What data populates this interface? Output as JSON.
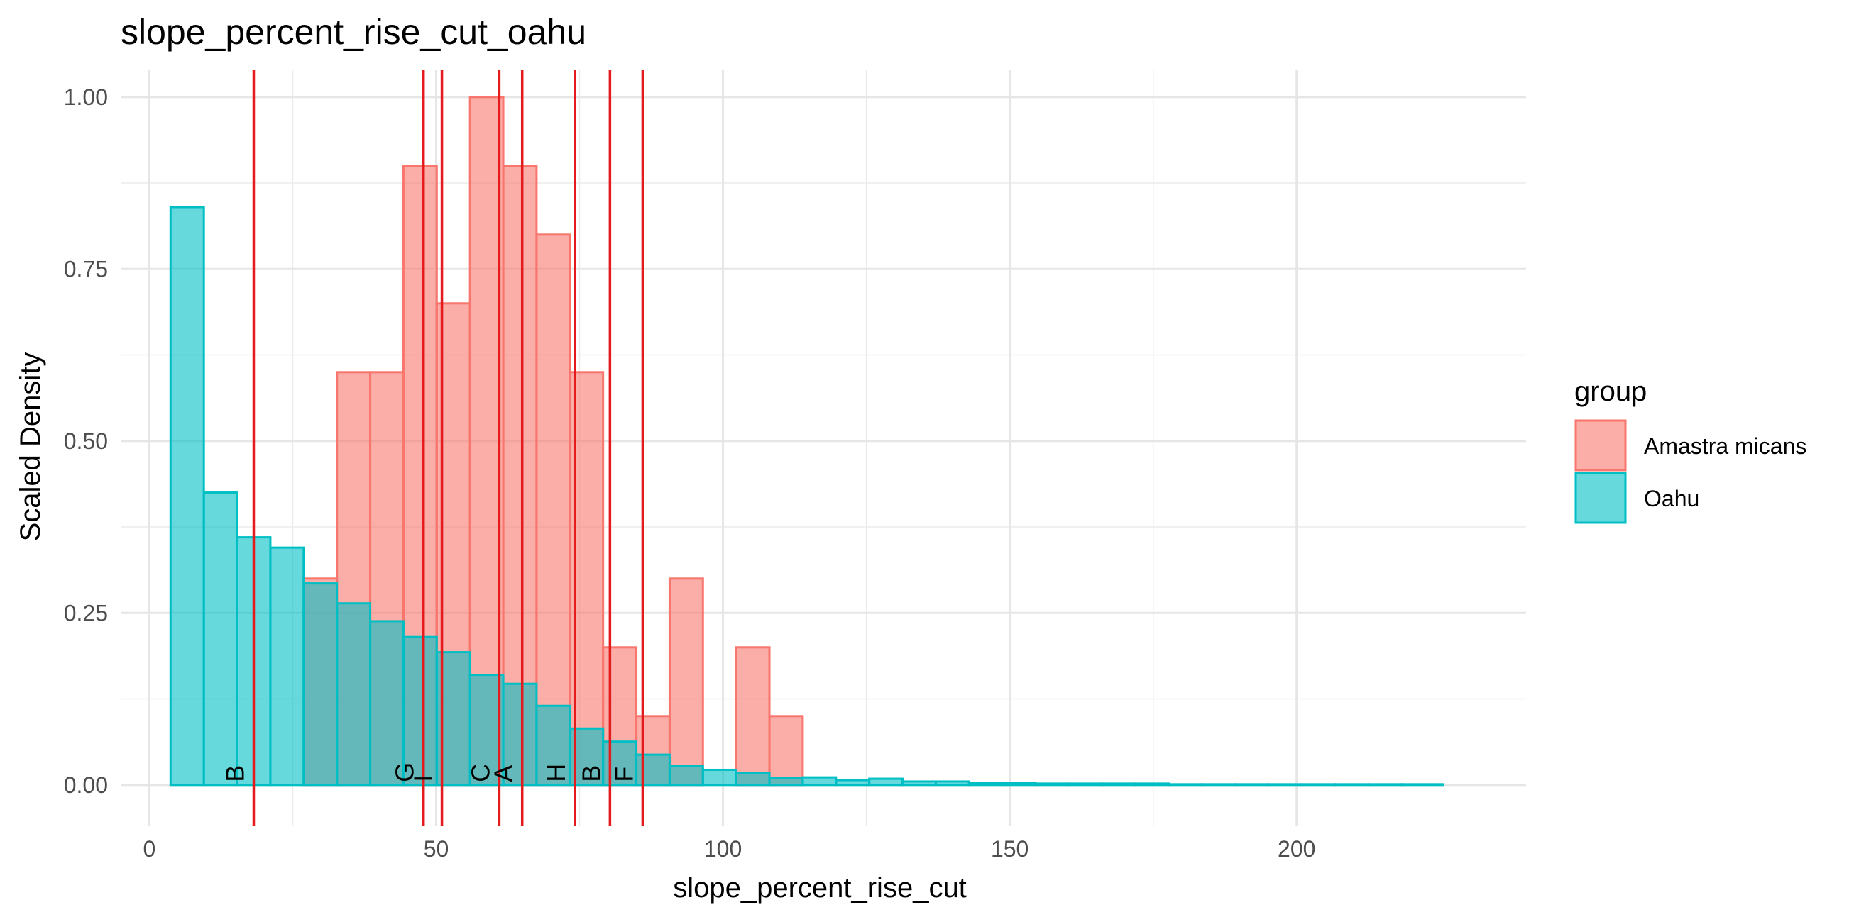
{
  "chart_data": {
    "type": "bar",
    "title": "slope_percent_rise_cut_oahu",
    "xlabel": "slope_percent_rise_cut",
    "ylabel": "Scaled Density",
    "xlim": [
      -5,
      240
    ],
    "ylim": [
      -0.06,
      1.04
    ],
    "x_ticks": [
      0,
      50,
      100,
      150,
      200
    ],
    "y_ticks": [
      0.0,
      0.25,
      0.5,
      0.75,
      1.0
    ],
    "x_tick_labels": [
      "0",
      "50",
      "100",
      "150",
      "200"
    ],
    "y_tick_labels": [
      "0.00",
      "0.25",
      "0.50",
      "0.75",
      "1.00"
    ],
    "grid": true,
    "legend": {
      "title": "group",
      "position": "right",
      "items": [
        {
          "label": "Amastra micans",
          "fill": "#F8766D",
          "stroke": "#F8766D"
        },
        {
          "label": "Oahu",
          "fill": "#00BFC4",
          "stroke": "#00BFC4"
        }
      ]
    },
    "bin_width": 5.8,
    "series": [
      {
        "name": "Amastra micans",
        "color": "#F8766D",
        "bins": [
          {
            "x0": 26.9,
            "x1": 32.7,
            "value": 0.3
          },
          {
            "x0": 32.7,
            "x1": 38.5,
            "value": 0.6
          },
          {
            "x0": 38.5,
            "x1": 44.3,
            "value": 0.6
          },
          {
            "x0": 44.3,
            "x1": 50.1,
            "value": 0.9
          },
          {
            "x0": 50.1,
            "x1": 55.9,
            "value": 0.7
          },
          {
            "x0": 55.9,
            "x1": 61.7,
            "value": 1.0
          },
          {
            "x0": 61.7,
            "x1": 67.5,
            "value": 0.9
          },
          {
            "x0": 67.5,
            "x1": 73.3,
            "value": 0.8
          },
          {
            "x0": 73.3,
            "x1": 79.1,
            "value": 0.6
          },
          {
            "x0": 79.1,
            "x1": 84.9,
            "value": 0.2
          },
          {
            "x0": 84.9,
            "x1": 90.7,
            "value": 0.1
          },
          {
            "x0": 90.7,
            "x1": 96.5,
            "value": 0.3
          },
          {
            "x0": 102.3,
            "x1": 108.1,
            "value": 0.2
          },
          {
            "x0": 108.1,
            "x1": 113.9,
            "value": 0.1
          }
        ]
      },
      {
        "name": "Oahu",
        "color": "#00BFC4",
        "bins": [
          {
            "x0": 3.7,
            "x1": 9.5,
            "value": 0.84
          },
          {
            "x0": 9.5,
            "x1": 15.3,
            "value": 0.425
          },
          {
            "x0": 15.3,
            "x1": 21.1,
            "value": 0.36
          },
          {
            "x0": 21.1,
            "x1": 26.9,
            "value": 0.345
          },
          {
            "x0": 26.9,
            "x1": 32.7,
            "value": 0.293
          },
          {
            "x0": 32.7,
            "x1": 38.5,
            "value": 0.264
          },
          {
            "x0": 38.5,
            "x1": 44.3,
            "value": 0.238
          },
          {
            "x0": 44.3,
            "x1": 50.1,
            "value": 0.215
          },
          {
            "x0": 50.1,
            "x1": 55.9,
            "value": 0.193
          },
          {
            "x0": 55.9,
            "x1": 61.7,
            "value": 0.16
          },
          {
            "x0": 61.7,
            "x1": 67.5,
            "value": 0.147
          },
          {
            "x0": 67.5,
            "x1": 73.3,
            "value": 0.115
          },
          {
            "x0": 73.3,
            "x1": 79.1,
            "value": 0.082
          },
          {
            "x0": 79.1,
            "x1": 84.9,
            "value": 0.063
          },
          {
            "x0": 84.9,
            "x1": 90.7,
            "value": 0.044
          },
          {
            "x0": 90.7,
            "x1": 96.5,
            "value": 0.028
          },
          {
            "x0": 96.5,
            "x1": 102.3,
            "value": 0.022
          },
          {
            "x0": 102.3,
            "x1": 108.1,
            "value": 0.017
          },
          {
            "x0": 108.1,
            "x1": 113.9,
            "value": 0.01
          },
          {
            "x0": 113.9,
            "x1": 119.7,
            "value": 0.011
          },
          {
            "x0": 119.7,
            "x1": 125.5,
            "value": 0.007
          },
          {
            "x0": 125.5,
            "x1": 131.3,
            "value": 0.009
          },
          {
            "x0": 131.3,
            "x1": 137.1,
            "value": 0.005
          },
          {
            "x0": 137.1,
            "x1": 142.9,
            "value": 0.005
          },
          {
            "x0": 142.9,
            "x1": 148.7,
            "value": 0.003
          },
          {
            "x0": 148.7,
            "x1": 154.5,
            "value": 0.003
          },
          {
            "x0": 154.5,
            "x1": 160.3,
            "value": 0.002
          },
          {
            "x0": 160.3,
            "x1": 166.1,
            "value": 0.002
          },
          {
            "x0": 166.1,
            "x1": 171.9,
            "value": 0.002
          },
          {
            "x0": 171.9,
            "x1": 177.7,
            "value": 0.002
          },
          {
            "x0": 177.7,
            "x1": 183.5,
            "value": 0.001
          },
          {
            "x0": 183.5,
            "x1": 189.3,
            "value": 0.001
          },
          {
            "x0": 189.3,
            "x1": 195.1,
            "value": 0.001
          },
          {
            "x0": 195.1,
            "x1": 200.9,
            "value": 0.001
          },
          {
            "x0": 200.9,
            "x1": 206.7,
            "value": 0.001
          },
          {
            "x0": 206.7,
            "x1": 212.5,
            "value": 0.001
          },
          {
            "x0": 212.5,
            "x1": 218.3,
            "value": 0.001
          },
          {
            "x0": 218.3,
            "x1": 225.5,
            "value": 0.001
          }
        ]
      }
    ],
    "vlines": {
      "color": "#E41A1C",
      "lines": [
        {
          "x": 18.2,
          "label": "B"
        },
        {
          "x": 47.8,
          "label": "G"
        },
        {
          "x": 51.0,
          "label": "I"
        },
        {
          "x": 61.0,
          "label": "C"
        },
        {
          "x": 65.0,
          "label": "A"
        },
        {
          "x": 74.2,
          "label": "H"
        },
        {
          "x": 80.3,
          "label": "B"
        },
        {
          "x": 86.0,
          "label": "F"
        }
      ]
    }
  }
}
